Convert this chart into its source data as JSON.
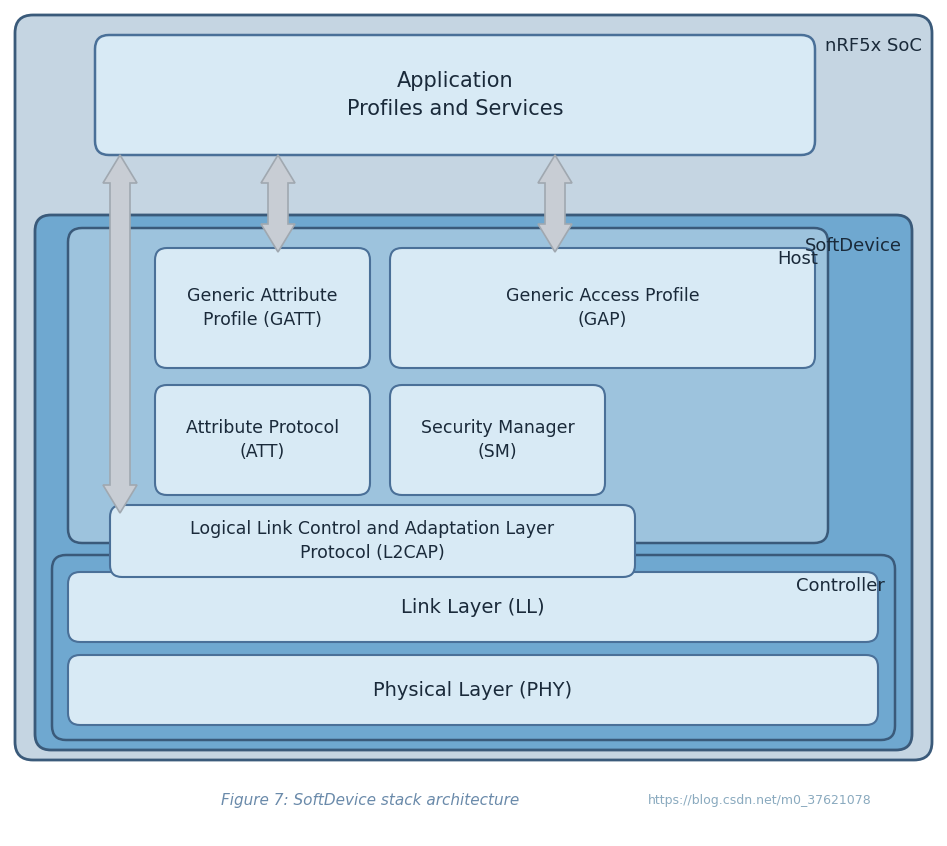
{
  "title": "Figure 7: SoftDevice stack architecture",
  "url": "https://blog.csdn.net/m0_37621078",
  "bg_white": "#ffffff",
  "bg_soc": "#c5d5e2",
  "bg_softdevice": "#6fa8d0",
  "bg_host": "#9dc3dd",
  "bg_controller": "#6fa8d0",
  "bg_box_light": "#d8eaf5",
  "edge_dark": "#3a5a7a",
  "edge_med": "#4a7098",
  "arrow_fill": "#c8cdd4",
  "arrow_edge": "#a0a8b0",
  "text_dark": "#1a2a3a",
  "text_label": "#2a4a6a",
  "fig_caption_color": "#6a8aaa",
  "url_color": "#8aaabf",
  "nrf_label": "nRF5x SoC",
  "softdevice_label": "SoftDevice",
  "host_label": "Host",
  "controller_label": "Controller",
  "app_text": "Application\nProfiles and Services",
  "gatt_text": "Generic Attribute\nProfile (GATT)",
  "gap_text": "Generic Access Profile\n(GAP)",
  "att_text": "Attribute Protocol\n(ATT)",
  "sm_text": "Security Manager\n(SM)",
  "l2cap_text": "Logical Link Control and Adaptation Layer\nProtocol (L2CAP)",
  "ll_text": "Link Layer (LL)",
  "phy_text": "Physical Layer (PHY)"
}
